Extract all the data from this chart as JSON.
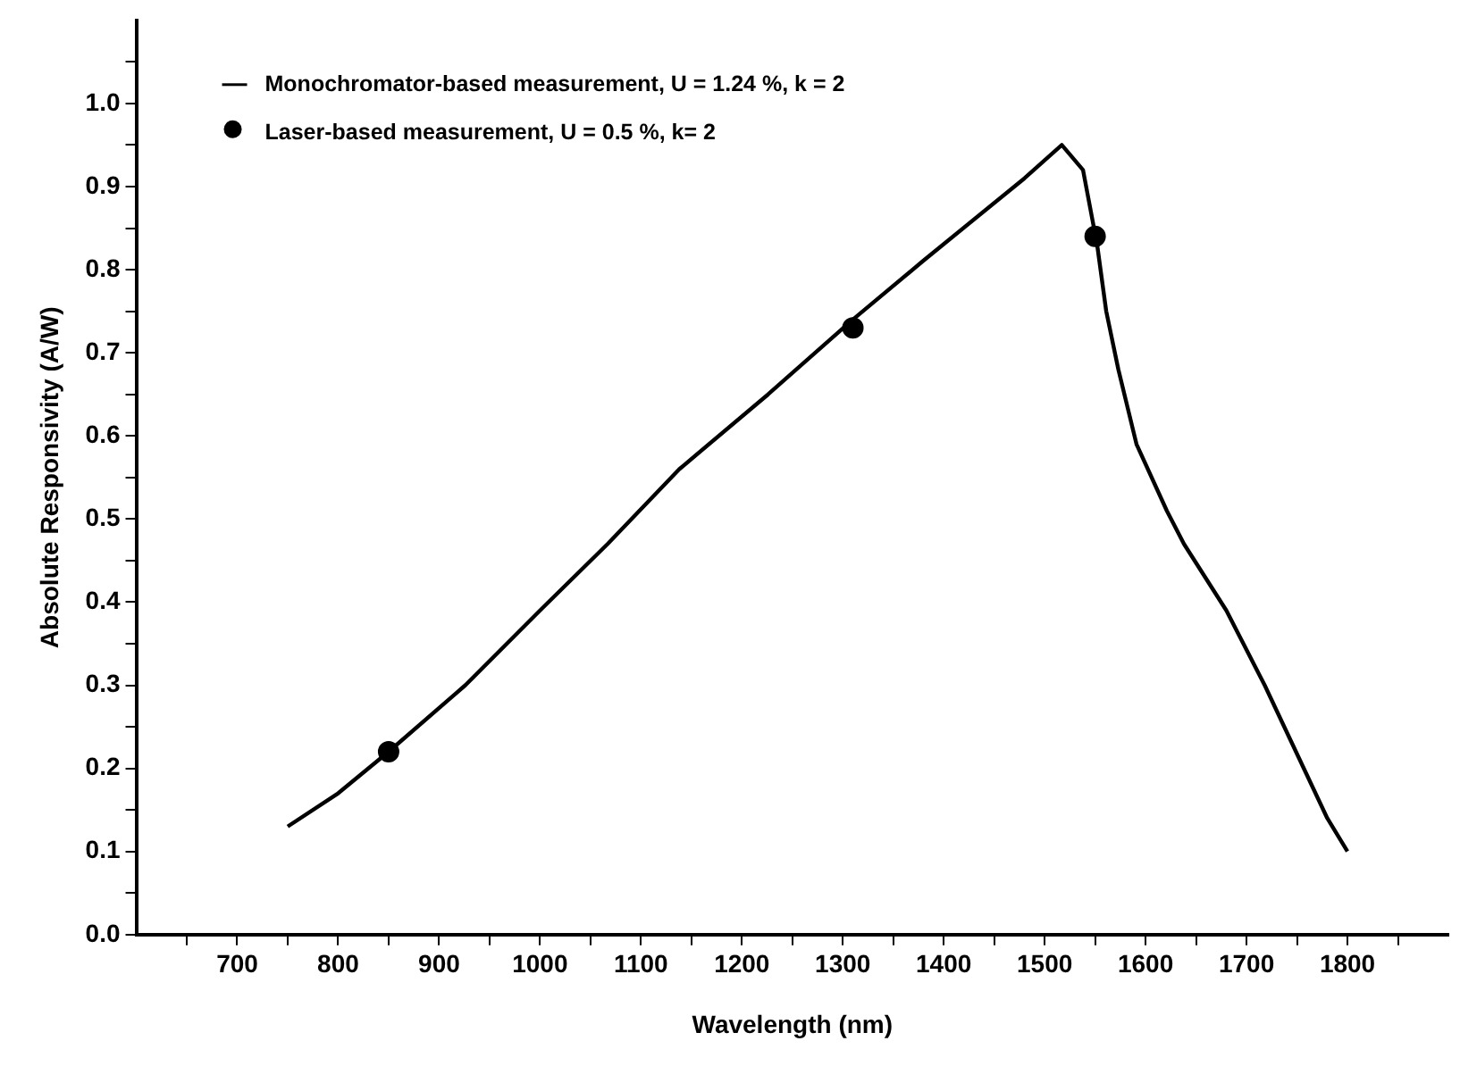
{
  "chart_data": {
    "type": "line",
    "xlabel": "Wavelength (nm)",
    "ylabel": "Absolute Responsivity (A/W)",
    "xlim": [
      600,
      1900
    ],
    "xticks": [
      {
        "value": 650,
        "label": null
      },
      700,
      {
        "value": 750,
        "label": null
      },
      800,
      {
        "value": 850,
        "label": null
      },
      900,
      {
        "value": 950,
        "label": null
      },
      1000,
      {
        "value": 1050,
        "label": null
      },
      1100,
      {
        "value": 1150,
        "label": null
      },
      1200,
      {
        "value": 1250,
        "label": null
      },
      1300,
      {
        "value": 1350,
        "label": null
      },
      1400,
      {
        "value": 1450,
        "label": null
      },
      1500,
      {
        "value": 1550,
        "label": null
      },
      1600,
      {
        "value": 1650,
        "label": null
      },
      1700,
      {
        "value": 1750,
        "label": null
      },
      1800,
      {
        "value": 1850,
        "label": null
      }
    ],
    "ylim": [
      0,
      1.1
    ],
    "yticks": [
      {
        "value": 0,
        "label": "0.0"
      },
      {
        "value": 0.05,
        "label": null
      },
      0.1,
      {
        "value": 0.15,
        "label": null
      },
      0.2,
      {
        "value": 0.25,
        "label": null
      },
      0.3,
      {
        "value": 0.35,
        "label": null
      },
      0.4,
      {
        "value": 0.45,
        "label": null
      },
      0.5,
      {
        "value": 0.55,
        "label": null
      },
      0.6,
      {
        "value": 0.65,
        "label": null
      },
      0.7,
      {
        "value": 0.75,
        "label": null
      },
      0.8,
      {
        "value": 0.85,
        "label": null
      },
      0.9,
      {
        "value": 0.95,
        "label": null
      },
      {
        "value": 1,
        "label": "1.0"
      },
      {
        "value": 1.05,
        "label": null
      }
    ],
    "grid": false,
    "legend": "top left",
    "series": [
      {
        "name": "Monochromator-based measurement, U = 1.24 %, k = 2",
        "color": "#000000",
        "marker": "none",
        "line_style": "solid",
        "x": [
          750,
          800,
          850,
          926,
          1000,
          1067,
          1138,
          1226,
          1310,
          1379,
          1480,
          1517,
          1538,
          1552,
          1561,
          1573,
          1591,
          1621,
          1638,
          1680,
          1718,
          1780,
          1800
        ],
        "values": [
          0.13,
          0.17,
          0.22,
          0.3,
          0.39,
          0.47,
          0.56,
          0.65,
          0.74,
          0.81,
          0.91,
          0.95,
          0.92,
          0.83,
          0.75,
          0.68,
          0.59,
          0.51,
          0.47,
          0.39,
          0.3,
          0.14,
          0.1
        ]
      },
      {
        "name": "Laser-based measurement, U = 0.5 %, k= 2",
        "type": "scatter",
        "color": "#000000",
        "marker": "circle",
        "x": [
          850,
          1310,
          1550
        ],
        "values": [
          0.22,
          0.73,
          0.84
        ]
      }
    ]
  }
}
